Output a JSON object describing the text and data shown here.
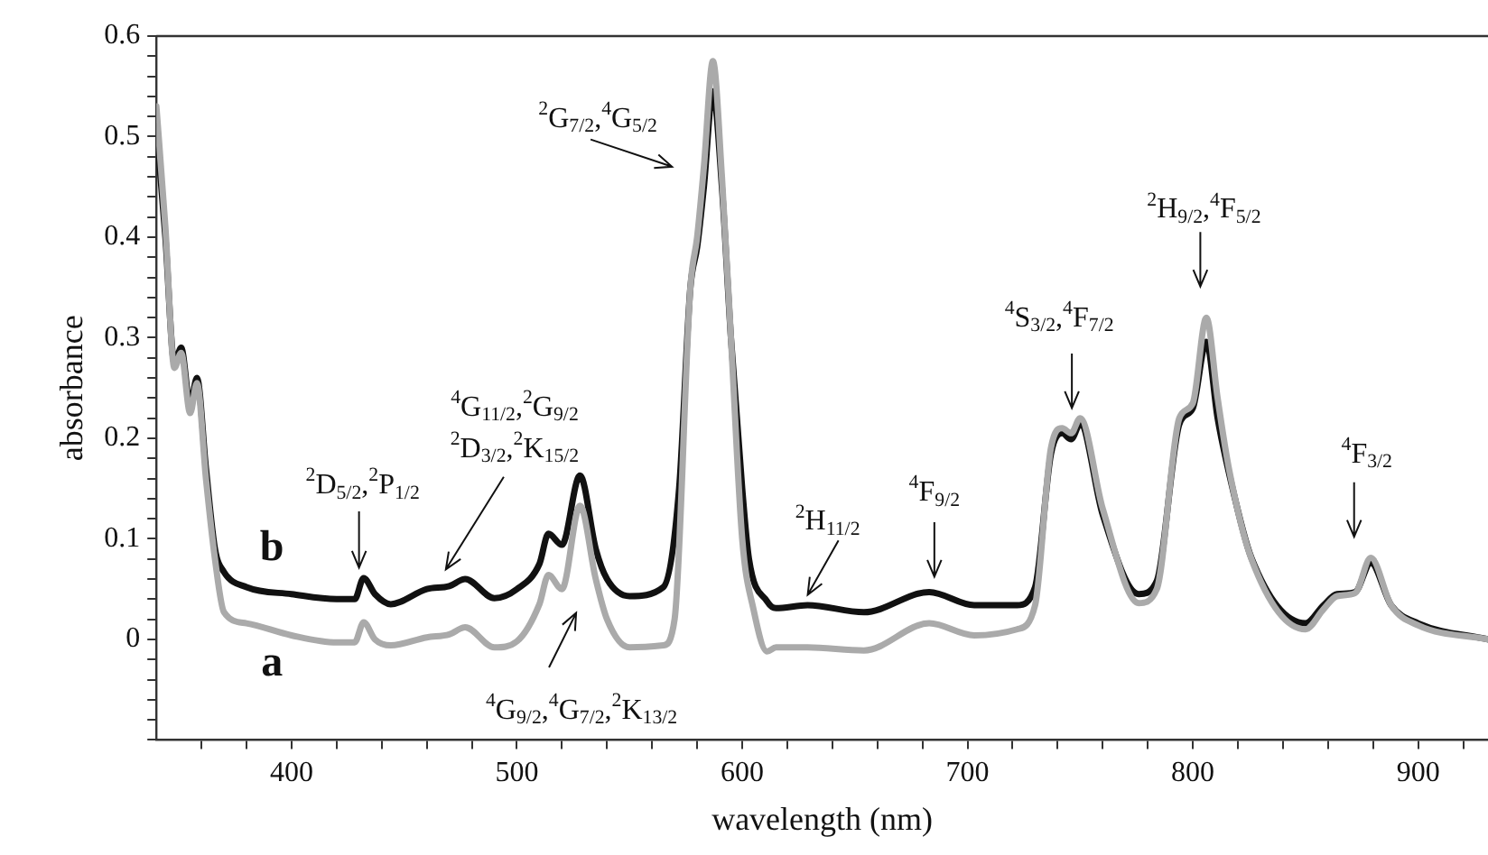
{
  "chart_data": {
    "type": "line",
    "xlabel": "wavelength (nm)",
    "ylabel": "absorbance",
    "xlim": [
      340,
      931
    ],
    "ylim": [
      -0.1,
      0.6
    ],
    "xticks": [
      {
        "value": 360,
        "label": null
      },
      {
        "value": 380,
        "label": null
      },
      400,
      {
        "value": 420,
        "label": null
      },
      {
        "value": 440,
        "label": null
      },
      {
        "value": 460,
        "label": null
      },
      {
        "value": 480,
        "label": null
      },
      500,
      {
        "value": 520,
        "label": null
      },
      {
        "value": 540,
        "label": null
      },
      {
        "value": 560,
        "label": null
      },
      {
        "value": 580,
        "label": null
      },
      600,
      {
        "value": 620,
        "label": null
      },
      {
        "value": 640,
        "label": null
      },
      {
        "value": 660,
        "label": null
      },
      {
        "value": 680,
        "label": null
      },
      700,
      {
        "value": 720,
        "label": null
      },
      {
        "value": 740,
        "label": null
      },
      {
        "value": 760,
        "label": null
      },
      {
        "value": 780,
        "label": null
      },
      800,
      {
        "value": 820,
        "label": null
      },
      {
        "value": 840,
        "label": null
      },
      {
        "value": 860,
        "label": null
      },
      {
        "value": 880,
        "label": null
      },
      900,
      {
        "value": 920,
        "label": null
      }
    ],
    "yticks": [
      {
        "value": -0.1,
        "label": null
      },
      {
        "value": -0.08,
        "label": null
      },
      {
        "value": -0.06,
        "label": null
      },
      {
        "value": -0.04,
        "label": null
      },
      {
        "value": -0.02,
        "label": null
      },
      0,
      {
        "value": 0.02,
        "label": null
      },
      {
        "value": 0.04,
        "label": null
      },
      {
        "value": 0.06,
        "label": null
      },
      {
        "value": 0.08,
        "label": null
      },
      0.1,
      {
        "value": 0.12,
        "label": null
      },
      {
        "value": 0.14,
        "label": null
      },
      {
        "value": 0.16,
        "label": null
      },
      {
        "value": 0.18,
        "label": null
      },
      0.2,
      {
        "value": 0.22,
        "label": null
      },
      {
        "value": 0.24,
        "label": null
      },
      {
        "value": 0.26,
        "label": null
      },
      {
        "value": 0.28,
        "label": null
      },
      0.3,
      {
        "value": 0.32,
        "label": null
      },
      {
        "value": 0.34,
        "label": null
      },
      {
        "value": 0.36,
        "label": null
      },
      {
        "value": 0.38,
        "label": null
      },
      0.4,
      {
        "value": 0.42,
        "label": null
      },
      {
        "value": 0.44,
        "label": null
      },
      {
        "value": 0.46,
        "label": null
      },
      {
        "value": 0.48,
        "label": null
      },
      0.5,
      {
        "value": 0.52,
        "label": null
      },
      {
        "value": 0.54,
        "label": null
      },
      {
        "value": 0.56,
        "label": null
      },
      {
        "value": 0.58,
        "label": null
      },
      0.6
    ],
    "grid": false,
    "legend": "left",
    "marker": "none",
    "line_style": "solid",
    "series": [
      {
        "name": "a",
        "color": "#aaaaaa",
        "x": [
          340,
          344,
          348,
          351,
          355,
          358,
          362,
          366,
          370,
          380,
          400,
          420,
          428,
          432,
          437,
          444,
          460,
          470,
          477,
          490,
          500,
          510,
          514,
          520,
          528,
          535,
          540,
          550,
          565,
          570,
          577,
          580,
          583,
          587,
          591,
          595,
          600,
          605,
          611,
          615,
          629,
          654,
          683,
          703,
          722,
          730,
          737,
          742,
          746,
          750,
          760,
          776,
          784,
          794,
          800,
          806,
          811,
          816,
          826,
          850,
          858,
          864,
          872,
          879,
          888,
          900,
          931
        ],
        "values": [
          0.53,
          0.41,
          0.27,
          0.285,
          0.225,
          0.255,
          0.16,
          0.08,
          0.027,
          0.016,
          0.004,
          -0.003,
          -0.003,
          0.017,
          0.0,
          -0.006,
          0.002,
          0.005,
          0.012,
          -0.008,
          -0.002,
          0.035,
          0.064,
          0.05,
          0.133,
          0.06,
          0.02,
          -0.008,
          -0.006,
          0.02,
          0.35,
          0.4,
          0.47,
          0.575,
          0.46,
          0.3,
          0.1,
          0.03,
          -0.012,
          -0.008,
          -0.008,
          -0.011,
          0.016,
          0.004,
          0.01,
          0.034,
          0.19,
          0.21,
          0.205,
          0.22,
          0.13,
          0.036,
          0.05,
          0.22,
          0.235,
          0.32,
          0.24,
          0.17,
          0.08,
          0.01,
          0.03,
          0.043,
          0.046,
          0.081,
          0.034,
          0.014,
          0.0
        ]
      },
      {
        "name": "b",
        "color": "#111111",
        "x": [
          340,
          344,
          348,
          351,
          355,
          358,
          362,
          366,
          370,
          380,
          400,
          420,
          428,
          432,
          437,
          444,
          460,
          470,
          477,
          490,
          500,
          510,
          514,
          520,
          528,
          535,
          540,
          550,
          565,
          572,
          577,
          580,
          583,
          587,
          591,
          595,
          600,
          603,
          611,
          615,
          629,
          654,
          683,
          703,
          722,
          730,
          737,
          742,
          746,
          750,
          760,
          776,
          784,
          794,
          800,
          806,
          811,
          816,
          826,
          850,
          858,
          864,
          872,
          879,
          888,
          900,
          931
        ],
        "values": [
          0.51,
          0.4,
          0.275,
          0.29,
          0.233,
          0.26,
          0.17,
          0.09,
          0.067,
          0.052,
          0.045,
          0.04,
          0.04,
          0.061,
          0.045,
          0.035,
          0.05,
          0.053,
          0.06,
          0.041,
          0.05,
          0.075,
          0.105,
          0.094,
          0.163,
          0.09,
          0.06,
          0.043,
          0.052,
          0.15,
          0.35,
          0.39,
          0.45,
          0.545,
          0.45,
          0.3,
          0.15,
          0.08,
          0.038,
          0.031,
          0.034,
          0.027,
          0.047,
          0.034,
          0.034,
          0.052,
          0.184,
          0.205,
          0.199,
          0.214,
          0.124,
          0.045,
          0.058,
          0.214,
          0.23,
          0.296,
          0.22,
          0.166,
          0.081,
          0.016,
          0.034,
          0.045,
          0.047,
          0.076,
          0.034,
          0.016,
          0.0
        ]
      }
    ],
    "annotations": [
      "$^{2}$G$_{7/2}$,$^{4}$G$_{5/2}$",
      "$^{2}$D$_{5/2}$,$^{2}$P$_{1/2}$",
      "$^{4}$G$_{11/2}$,$^{2}$G$_{9/2}$ $^{2}$D$_{3/2}$,$^{2}$K$_{15/2}$",
      "$^{4}$G$_{9/2}$,$^{4}$G$_{7/2}$,$^{2}$K$_{13/2}$",
      "$^{2}$H$_{11/2}$",
      "$^{4}$F$_{9/2}$",
      "$^{4}$S$_{3/2}$,$^{4}$F$_{7/2}$",
      "$^{2}$H$_{9/2}$,$^{4}$F$_{5/2}$",
      "$^{4}$F$_{3/2}$"
    ]
  }
}
